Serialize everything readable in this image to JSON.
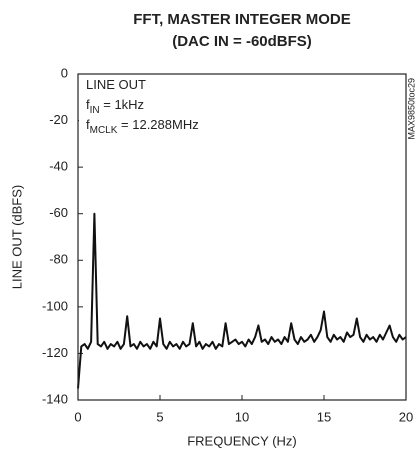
{
  "chart_data": {
    "type": "line",
    "title": [
      "FFT, MASTER INTEGER MODE",
      "(DAC IN = -60dBFS)"
    ],
    "xlabel": "FREQUENCY (Hz)",
    "ylabel": "LINE OUT (dBFS)",
    "side_label": "MAX9850toc29",
    "annotations": [
      [
        "LINE OUT"
      ],
      [
        "f",
        "IN",
        " = 1kHz"
      ],
      [
        "f",
        "MCLK",
        " = 12.288MHz"
      ]
    ],
    "xlim": [
      0,
      20
    ],
    "xticks": [
      0,
      5,
      10,
      15,
      20
    ],
    "ylim": [
      -140,
      0
    ],
    "yticks": [
      0,
      -20,
      -40,
      -60,
      -80,
      -100,
      -120,
      -140
    ],
    "x": [
      0,
      0.2,
      0.4,
      0.6,
      0.8,
      1,
      1.2,
      1.4,
      1.6,
      1.8,
      2,
      2.2,
      2.4,
      2.6,
      2.8,
      3,
      3.2,
      3.4,
      3.6,
      3.8,
      4,
      4.2,
      4.4,
      4.6,
      4.8,
      5,
      5.2,
      5.4,
      5.6,
      5.8,
      6,
      6.2,
      6.4,
      6.6,
      6.8,
      7,
      7.2,
      7.4,
      7.6,
      7.8,
      8,
      8.2,
      8.4,
      8.6,
      8.8,
      9,
      9.2,
      9.4,
      9.6,
      9.8,
      10,
      10.2,
      10.4,
      10.6,
      10.8,
      11,
      11.2,
      11.4,
      11.6,
      11.8,
      12,
      12.2,
      12.4,
      12.6,
      12.8,
      13,
      13.2,
      13.4,
      13.6,
      13.8,
      14,
      14.2,
      14.4,
      14.6,
      14.8,
      15,
      15.2,
      15.4,
      15.6,
      15.8,
      16,
      16.2,
      16.4,
      16.6,
      16.8,
      17,
      17.2,
      17.4,
      17.6,
      17.8,
      18,
      18.2,
      18.4,
      18.6,
      18.8,
      19,
      19.2,
      19.4,
      19.6,
      19.8,
      20
    ],
    "series": [
      {
        "color": "#111111",
        "values": [
          -135,
          -117,
          -116,
          -118,
          -115,
          -60,
          -116,
          -117,
          -115,
          -118,
          -116,
          -117,
          -115,
          -118,
          -116,
          -104,
          -117,
          -116,
          -118,
          -115,
          -117,
          -116,
          -118,
          -115,
          -117,
          -105,
          -116,
          -118,
          -115,
          -117,
          -116,
          -118,
          -115,
          -117,
          -116,
          -107,
          -117,
          -115,
          -118,
          -116,
          -117,
          -115,
          -118,
          -116,
          -117,
          -107,
          -116,
          -115,
          -114,
          -116,
          -115,
          -117,
          -114,
          -116,
          -113,
          -108,
          -115,
          -114,
          -116,
          -113,
          -115,
          -114,
          -116,
          -113,
          -115,
          -107,
          -114,
          -116,
          -113,
          -115,
          -114,
          -112,
          -115,
          -113,
          -110,
          -102,
          -113,
          -115,
          -112,
          -114,
          -113,
          -115,
          -111,
          -113,
          -112,
          -105,
          -113,
          -115,
          -112,
          -114,
          -113,
          -115,
          -112,
          -114,
          -111,
          -108,
          -113,
          -115,
          -112,
          -114,
          -113
        ]
      }
    ]
  }
}
